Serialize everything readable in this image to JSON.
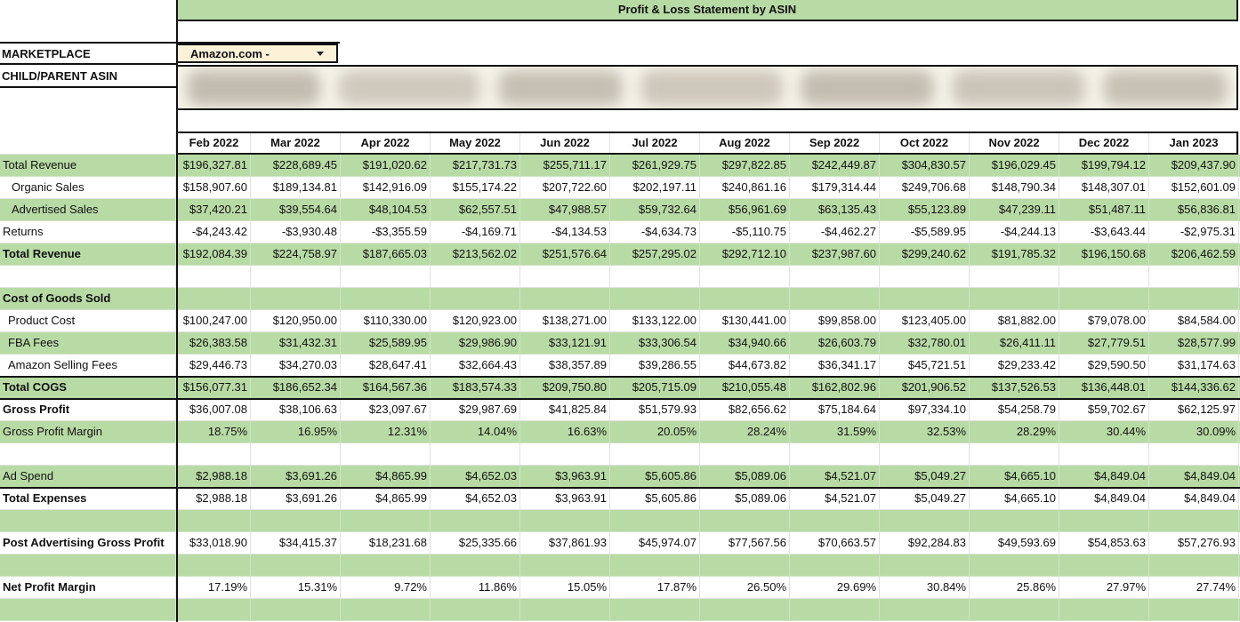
{
  "title": "Profit & Loss Statement by ASIN",
  "marketplace_label": "MARKETPLACE",
  "marketplace_value": "Amazon.com -",
  "asin_label": "CHILD/PARENT ASIN",
  "months": [
    "Feb 2022",
    "Mar 2022",
    "Apr 2022",
    "May 2022",
    "Jun 2022",
    "Jul 2022",
    "Aug 2022",
    "Sep 2022",
    "Oct 2022",
    "Nov 2022",
    "Dec 2022",
    "Jan 2023"
  ],
  "rows": [
    {
      "label": "Total Revenue",
      "style": "green",
      "bold": false,
      "indent": 0,
      "values": [
        "$196,327.81",
        "$228,689.45",
        "$191,020.62",
        "$217,731.73",
        "$255,711.17",
        "$261,929.75",
        "$297,822.85",
        "$242,449.87",
        "$304,830.57",
        "$196,029.45",
        "$199,794.12",
        "$209,437.90"
      ]
    },
    {
      "label": "Organic Sales",
      "style": "white",
      "bold": false,
      "indent": 1,
      "values": [
        "$158,907.60",
        "$189,134.81",
        "$142,916.09",
        "$155,174.22",
        "$207,722.60",
        "$202,197.11",
        "$240,861.16",
        "$179,314.44",
        "$249,706.68",
        "$148,790.34",
        "$148,307.01",
        "$152,601.09"
      ]
    },
    {
      "label": "Advertised Sales",
      "style": "green",
      "bold": false,
      "indent": 1,
      "values": [
        "$37,420.21",
        "$39,554.64",
        "$48,104.53",
        "$62,557.51",
        "$47,988.57",
        "$59,732.64",
        "$56,961.69",
        "$63,135.43",
        "$55,123.89",
        "$47,239.11",
        "$51,487.11",
        "$56,836.81"
      ]
    },
    {
      "label": "Returns",
      "style": "white",
      "bold": false,
      "indent": 0,
      "values": [
        "-$4,243.42",
        "-$3,930.48",
        "-$3,355.59",
        "-$4,169.71",
        "-$4,134.53",
        "-$4,634.73",
        "-$5,110.75",
        "-$4,462.27",
        "-$5,589.95",
        "-$4,244.13",
        "-$3,643.44",
        "-$2,975.31"
      ]
    },
    {
      "label": "Total Revenue",
      "style": "green",
      "bold": true,
      "indent": 0,
      "values": [
        "$192,084.39",
        "$224,758.97",
        "$187,665.03",
        "$213,562.02",
        "$251,576.64",
        "$257,295.02",
        "$292,712.10",
        "$237,987.60",
        "$299,240.62",
        "$191,785.32",
        "$196,150.68",
        "$206,462.59"
      ]
    },
    {
      "label": "",
      "style": "white",
      "bold": false,
      "indent": 0,
      "values": []
    },
    {
      "label": "Cost of Goods Sold",
      "style": "green",
      "bold": true,
      "indent": 0,
      "values": []
    },
    {
      "label": "Product Cost",
      "style": "white",
      "bold": false,
      "indent": 2,
      "values": [
        "$100,247.00",
        "$120,950.00",
        "$110,330.00",
        "$120,923.00",
        "$138,271.00",
        "$133,122.00",
        "$130,441.00",
        "$99,858.00",
        "$123,405.00",
        "$81,882.00",
        "$79,078.00",
        "$84,584.00"
      ]
    },
    {
      "label": "FBA Fees",
      "style": "green",
      "bold": false,
      "indent": 2,
      "values": [
        "$26,383.58",
        "$31,432.31",
        "$25,589.95",
        "$29,986.90",
        "$33,121.91",
        "$33,306.54",
        "$34,940.66",
        "$26,603.79",
        "$32,780.01",
        "$26,411.11",
        "$27,779.51",
        "$28,577.99"
      ]
    },
    {
      "label": "Amazon Selling Fees",
      "style": "white",
      "bold": false,
      "indent": 2,
      "values": [
        "$29,446.73",
        "$34,270.03",
        "$28,647.41",
        "$32,664.43",
        "$38,357.89",
        "$39,286.55",
        "$44,673.82",
        "$36,341.17",
        "$45,721.51",
        "$29,233.42",
        "$29,590.50",
        "$31,174.63"
      ]
    },
    {
      "label": "Total COGS",
      "style": "green",
      "bold": true,
      "indent": 0,
      "values": [
        "$156,077.31",
        "$186,652.34",
        "$164,567.36",
        "$183,574.33",
        "$209,750.80",
        "$205,715.09",
        "$210,055.48",
        "$162,802.96",
        "$201,906.52",
        "$137,526.53",
        "$136,448.01",
        "$144,336.62"
      ]
    },
    {
      "label": "Gross Profit",
      "style": "white",
      "bold": true,
      "indent": 0,
      "values": [
        "$36,007.08",
        "$38,106.63",
        "$23,097.67",
        "$29,987.69",
        "$41,825.84",
        "$51,579.93",
        "$82,656.62",
        "$75,184.64",
        "$97,334.10",
        "$54,258.79",
        "$59,702.67",
        "$62,125.97"
      ]
    },
    {
      "label": "Gross Profit Margin",
      "style": "green",
      "bold": false,
      "indent": 0,
      "values": [
        "18.75%",
        "16.95%",
        "12.31%",
        "14.04%",
        "16.63%",
        "20.05%",
        "28.24%",
        "31.59%",
        "32.53%",
        "28.29%",
        "30.44%",
        "30.09%"
      ]
    },
    {
      "label": "",
      "style": "white",
      "bold": false,
      "indent": 0,
      "values": []
    },
    {
      "label": "Ad Spend",
      "style": "green",
      "bold": false,
      "indent": 0,
      "values": [
        "$2,988.18",
        "$3,691.26",
        "$4,865.99",
        "$4,652.03",
        "$3,963.91",
        "$5,605.86",
        "$5,089.06",
        "$4,521.07",
        "$5,049.27",
        "$4,665.10",
        "$4,849.04",
        "$4,849.04"
      ]
    },
    {
      "label": "Total Expenses",
      "style": "white",
      "bold": true,
      "indent": 0,
      "values": [
        "$2,988.18",
        "$3,691.26",
        "$4,865.99",
        "$4,652.03",
        "$3,963.91",
        "$5,605.86",
        "$5,089.06",
        "$4,521.07",
        "$5,049.27",
        "$4,665.10",
        "$4,849.04",
        "$4,849.04"
      ]
    },
    {
      "label": "",
      "style": "green",
      "bold": false,
      "indent": 0,
      "values": []
    },
    {
      "label": "Post Advertising Gross Profit",
      "style": "white",
      "bold": true,
      "indent": 0,
      "values": [
        "$33,018.90",
        "$34,415.37",
        "$18,231.68",
        "$25,335.66",
        "$37,861.93",
        "$45,974.07",
        "$77,567.56",
        "$70,663.57",
        "$92,284.83",
        "$49,593.69",
        "$54,853.63",
        "$57,276.93"
      ]
    },
    {
      "label": "",
      "style": "green",
      "bold": false,
      "indent": 0,
      "values": []
    },
    {
      "label": "Net Profit Margin",
      "style": "white",
      "bold": true,
      "indent": 0,
      "values": [
        "17.19%",
        "15.31%",
        "9.72%",
        "11.86%",
        "15.05%",
        "17.87%",
        "26.50%",
        "29.69%",
        "30.84%",
        "25.86%",
        "27.97%",
        "27.74%"
      ]
    },
    {
      "label": "",
      "style": "green",
      "bold": false,
      "indent": 0,
      "values": []
    }
  ],
  "colors": {
    "accent_green": "#b8dba5",
    "dropdown_bg": "#fdf1d8",
    "border": "#111111"
  },
  "icons": {
    "dropdown_arrow": "caret-down-icon"
  }
}
